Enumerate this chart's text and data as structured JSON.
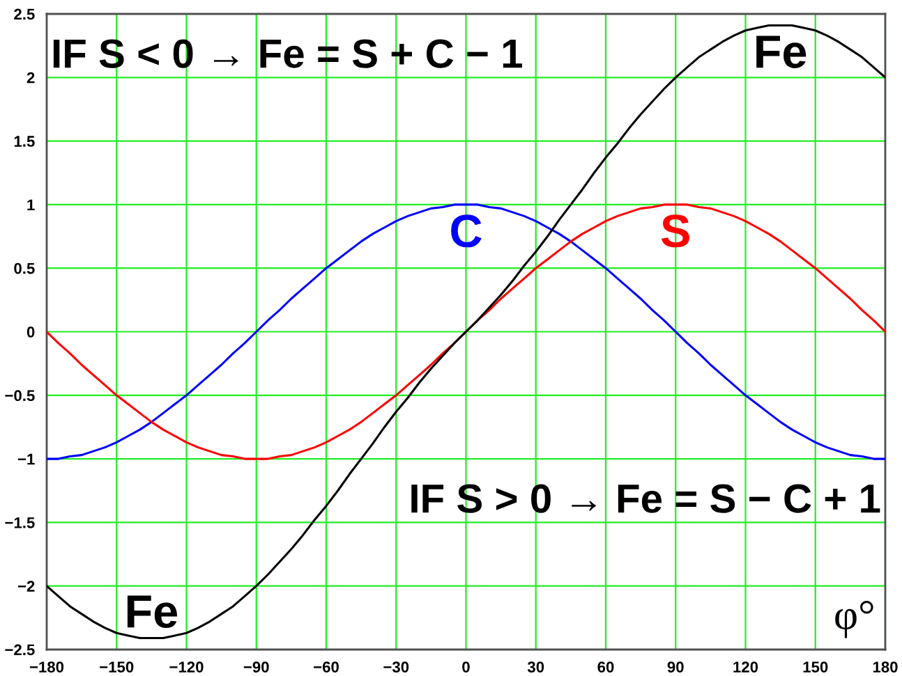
{
  "chart_data": {
    "type": "line",
    "xlabel": "φ°",
    "annotations": [
      "IF S < 0 → Fe = S + C − 1",
      "IF S > 0 → Fe = S − C + 1",
      {
        "text": "Fe",
        "x": -135,
        "y": -2.41
      }
    ],
    "x": [
      -180,
      -175,
      -170,
      -165,
      -160,
      -155,
      -150,
      -145,
      -140,
      -135,
      -130,
      -125,
      -120,
      -115,
      -110,
      -105,
      -100,
      -95,
      -90,
      -85,
      -80,
      -75,
      -70,
      -65,
      -60,
      -55,
      -50,
      -45,
      -40,
      -35,
      -30,
      -25,
      -20,
      -15,
      -10,
      -5,
      0,
      5,
      10,
      15,
      20,
      25,
      30,
      35,
      40,
      45,
      50,
      55,
      60,
      65,
      70,
      75,
      80,
      85,
      90,
      95,
      100,
      105,
      110,
      115,
      120,
      125,
      130,
      135,
      140,
      145,
      150,
      155,
      160,
      165,
      170,
      175,
      180
    ],
    "series": [
      {
        "name": "C",
        "color": "#0000ff",
        "values": [
          -1,
          -1,
          -0.98,
          -0.97,
          -0.94,
          -0.91,
          -0.87,
          -0.82,
          -0.77,
          -0.71,
          -0.64,
          -0.57,
          -0.5,
          -0.42,
          -0.34,
          -0.26,
          -0.17,
          -0.09,
          0,
          0.09,
          0.17,
          0.26,
          0.34,
          0.42,
          0.5,
          0.57,
          0.64,
          0.71,
          0.77,
          0.82,
          0.87,
          0.91,
          0.94,
          0.97,
          0.98,
          1,
          1,
          1,
          0.98,
          0.97,
          0.94,
          0.91,
          0.87,
          0.82,
          0.77,
          0.71,
          0.64,
          0.57,
          0.5,
          0.42,
          0.34,
          0.26,
          0.17,
          0.09,
          0,
          -0.09,
          -0.17,
          -0.26,
          -0.34,
          -0.42,
          -0.5,
          -0.57,
          -0.64,
          -0.71,
          -0.77,
          -0.82,
          -0.87,
          -0.91,
          -0.94,
          -0.97,
          -0.98,
          -1,
          -1
        ]
      },
      {
        "name": "S",
        "color": "#ff0000",
        "values": [
          0,
          -0.09,
          -0.17,
          -0.26,
          -0.34,
          -0.42,
          -0.5,
          -0.57,
          -0.64,
          -0.71,
          -0.77,
          -0.82,
          -0.87,
          -0.91,
          -0.94,
          -0.97,
          -0.98,
          -1,
          -1,
          -1,
          -0.98,
          -0.97,
          -0.94,
          -0.91,
          -0.87,
          -0.82,
          -0.77,
          -0.71,
          -0.64,
          -0.57,
          -0.5,
          -0.42,
          -0.34,
          -0.26,
          -0.17,
          -0.09,
          0,
          0.09,
          0.17,
          0.26,
          0.34,
          0.42,
          0.5,
          0.57,
          0.64,
          0.71,
          0.77,
          0.82,
          0.87,
          0.91,
          0.94,
          0.97,
          0.98,
          1,
          1,
          1,
          0.98,
          0.97,
          0.94,
          0.91,
          0.87,
          0.82,
          0.77,
          0.71,
          0.64,
          0.57,
          0.5,
          0.42,
          0.34,
          0.26,
          0.17,
          0.09,
          0
        ]
      },
      {
        "name": "Fe",
        "color": "#000000",
        "values": [
          -2,
          -2.08,
          -2.16,
          -2.22,
          -2.28,
          -2.33,
          -2.37,
          -2.39,
          -2.41,
          -2.41,
          -2.41,
          -2.39,
          -2.37,
          -2.33,
          -2.28,
          -2.22,
          -2.16,
          -2.08,
          -2,
          -1.91,
          -1.81,
          -1.71,
          -1.6,
          -1.48,
          -1.37,
          -1.25,
          -1.12,
          -1,
          -0.88,
          -0.75,
          -0.63,
          -0.52,
          -0.4,
          -0.29,
          -0.19,
          -0.09,
          0,
          0.09,
          0.19,
          0.29,
          0.4,
          0.52,
          0.63,
          0.75,
          0.88,
          1,
          1.12,
          1.25,
          1.37,
          1.48,
          1.6,
          1.71,
          1.81,
          1.91,
          2,
          2.08,
          2.16,
          2.22,
          2.28,
          2.33,
          2.37,
          2.39,
          2.41,
          2.41,
          2.41,
          2.39,
          2.37,
          2.33,
          2.28,
          2.22,
          2.16,
          2.08,
          2
        ]
      }
    ],
    "xlim": [
      -180,
      180
    ],
    "ylim": [
      -2.5,
      2.5
    ],
    "xticks": [
      {
        "value": -180,
        "label": "−180"
      },
      {
        "value": -150,
        "label": "−150"
      },
      {
        "value": -120,
        "label": "−120"
      },
      {
        "value": -90,
        "label": "−90"
      },
      {
        "value": -60,
        "label": "−60"
      },
      {
        "value": -30,
        "label": "−30"
      },
      0,
      30,
      60,
      90,
      120,
      150,
      180
    ],
    "yticks": [
      {
        "value": -2.5,
        "label": "−2.5"
      },
      {
        "value": -2,
        "label": "−2"
      },
      {
        "value": -1.5,
        "label": "−1.5"
      },
      {
        "value": -1,
        "label": "−1"
      },
      {
        "value": -0.5,
        "label": "−0.5"
      },
      0,
      0.5,
      1,
      1.5,
      2,
      2.5
    ],
    "grid": true
  }
}
